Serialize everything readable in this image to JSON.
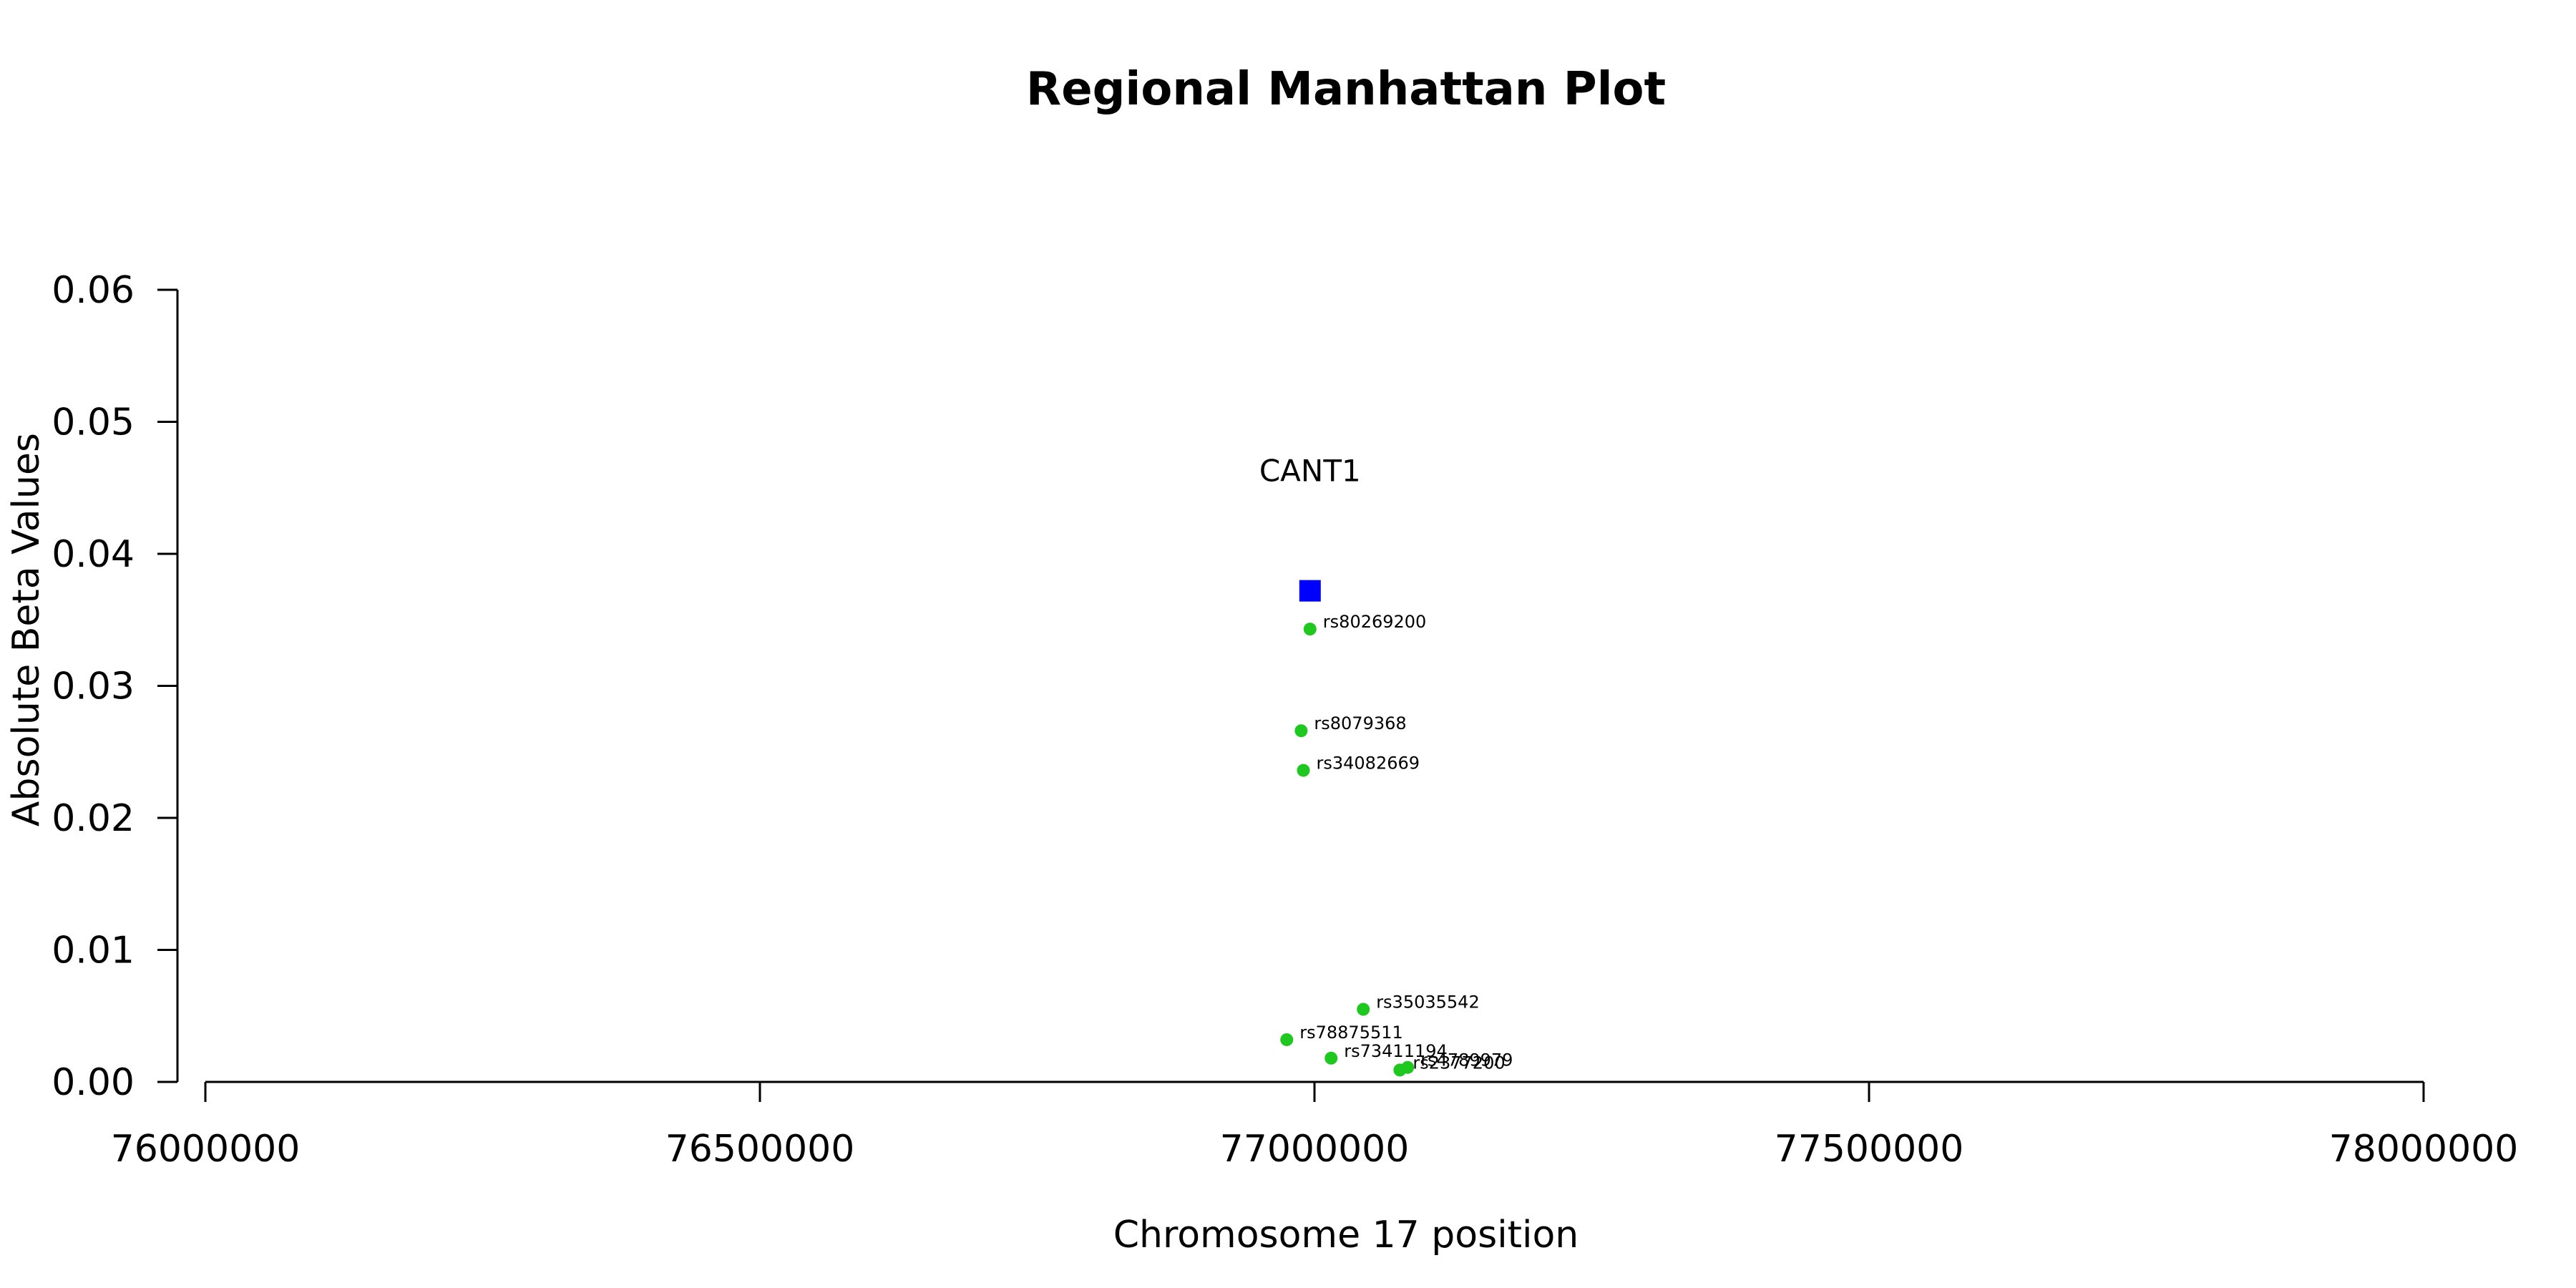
{
  "chart_data": {
    "type": "scatter",
    "title": "Regional Manhattan Plot",
    "xlabel": "Chromosome 17 position",
    "ylabel": "Absolute Beta Values",
    "xlim": [
      76000000,
      78000000
    ],
    "ylim": [
      0,
      0.06
    ],
    "x_ticks": [
      "76000000",
      "76500000",
      "77000000",
      "77500000",
      "78000000"
    ],
    "y_ticks": [
      "0.00",
      "0.01",
      "0.02",
      "0.03",
      "0.04",
      "0.05",
      "0.06"
    ],
    "grid": false,
    "colors": {
      "snp": "#1ec81e",
      "gene": "#0000ff"
    },
    "gene": {
      "name": "CANT1",
      "x": 76996000,
      "y": 0.0372,
      "label_y": 0.0455
    },
    "series": [
      {
        "points": [
          {
            "label": "rs80269200",
            "x": 76996000,
            "y": 0.0343
          },
          {
            "label": "rs8079368",
            "x": 76988000,
            "y": 0.0266
          },
          {
            "label": "rs34082669",
            "x": 76990000,
            "y": 0.0236
          },
          {
            "label": "rs35035542",
            "x": 77044000,
            "y": 0.0055
          },
          {
            "label": "rs78875511",
            "x": 76975000,
            "y": 0.0032
          },
          {
            "label": "rs73411194",
            "x": 77015000,
            "y": 0.0018
          },
          {
            "label": "rs4789979",
            "x": 77084000,
            "y": 0.0011
          },
          {
            "label": "rs2377200",
            "x": 77077000,
            "y": 0.0009
          }
        ]
      }
    ]
  }
}
